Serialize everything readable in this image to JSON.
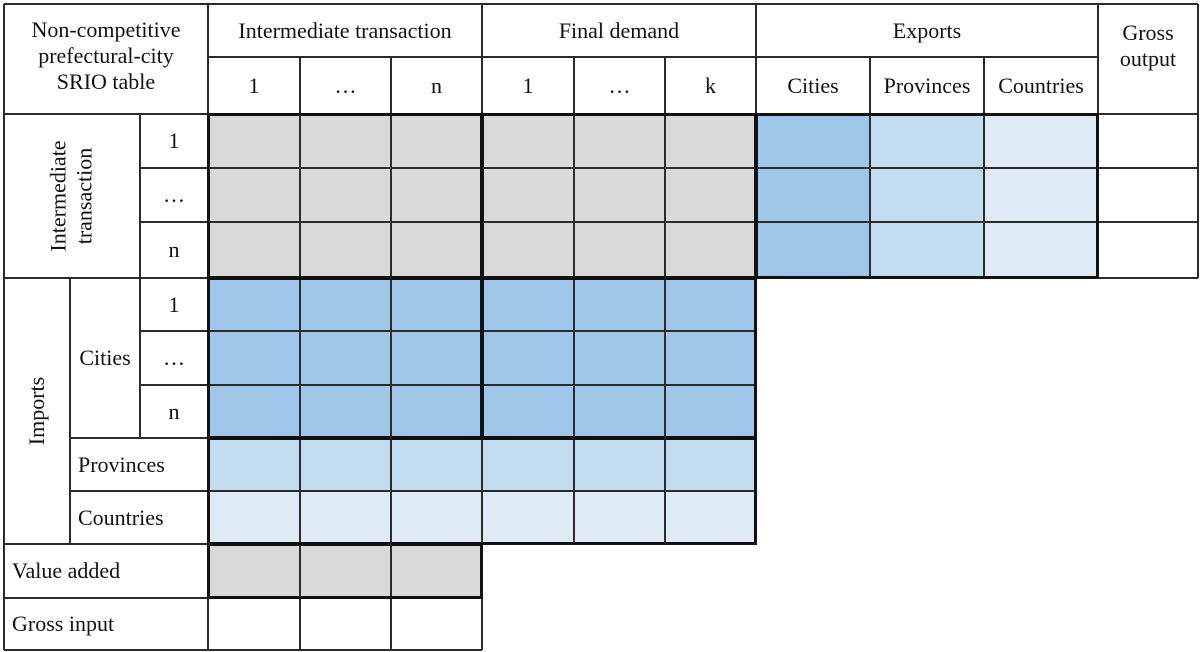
{
  "colors": {
    "gray": "#d9d9d9",
    "dark_blue": "#9fc5e8",
    "mid_blue": "#c2ddf0",
    "light_blue": "#deeaf6",
    "white": "#ffffff"
  },
  "header": {
    "corner_lines": [
      "Non-competitive",
      "prefectural-city",
      "SRIO table"
    ],
    "intermediate_transaction": "Intermediate transaction",
    "final_demand": "Final demand",
    "exports": "Exports",
    "gross_output_lines": [
      "Gross",
      "output"
    ],
    "intermediate_cols": [
      "1",
      "…",
      "n"
    ],
    "final_demand_cols": [
      "1",
      "…",
      "k"
    ],
    "export_cols": [
      "Cities",
      "Provinces",
      "Countries"
    ]
  },
  "rows": {
    "intermediate_group_lines": [
      "Intermediate",
      "transaction"
    ],
    "intermediate_items": [
      "1",
      "…",
      "n"
    ],
    "imports_group": "Imports",
    "cities": "Cities",
    "cities_items": [
      "1",
      "…",
      "n"
    ],
    "provinces": "Provinces",
    "countries": "Countries",
    "value_added": "Value added",
    "gross_input": "Gross input"
  }
}
